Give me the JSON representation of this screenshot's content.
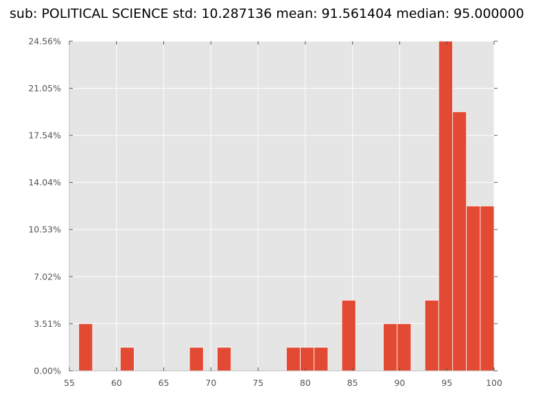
{
  "chart_data": {
    "type": "bar",
    "title": "sub: POLITICAL SCIENCE std: 10.287136 mean: 91.561404 median: 95.000000",
    "xlabel": "",
    "ylabel": "",
    "xlim": [
      55,
      100
    ],
    "ylim": [
      0,
      24.56
    ],
    "grid": true,
    "x_ticks": [
      "55",
      "60",
      "65",
      "70",
      "75",
      "80",
      "85",
      "90",
      "95",
      "100"
    ],
    "y_ticks": [
      "0.00%",
      "3.51%",
      "7.02%",
      "10.53%",
      "14.04%",
      "17.54%",
      "21.05%",
      "24.56%"
    ],
    "bin_width": 1.4667,
    "bins": [
      {
        "x0": 56.0,
        "value": 3.51
      },
      {
        "x0": 60.4,
        "value": 1.75
      },
      {
        "x0": 67.733,
        "value": 1.75
      },
      {
        "x0": 70.667,
        "value": 1.75
      },
      {
        "x0": 78.0,
        "value": 1.75
      },
      {
        "x0": 79.467,
        "value": 1.75
      },
      {
        "x0": 80.933,
        "value": 1.75
      },
      {
        "x0": 83.867,
        "value": 5.26
      },
      {
        "x0": 88.267,
        "value": 3.51
      },
      {
        "x0": 89.733,
        "value": 3.51
      },
      {
        "x0": 92.667,
        "value": 5.26
      },
      {
        "x0": 94.133,
        "value": 24.56
      },
      {
        "x0": 95.6,
        "value": 19.3
      },
      {
        "x0": 97.067,
        "value": 12.28
      },
      {
        "x0": 98.533,
        "value": 12.28
      }
    ],
    "colors": {
      "bar": "#E24A33",
      "bar_edge": "#ffffff",
      "plot_bg": "#E5E5E5",
      "grid": "#ffffff",
      "tick": "#555555"
    }
  }
}
